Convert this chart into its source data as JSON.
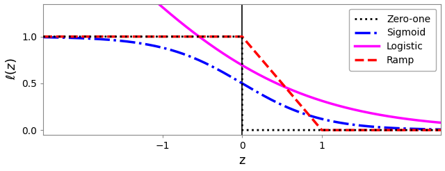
{
  "title": "",
  "xlabel": "z",
  "ylabel": "$\\ell(z)$",
  "xlim": [
    -2.5,
    2.5
  ],
  "ylim": [
    -0.05,
    1.35
  ],
  "yticks": [
    0.0,
    0.5,
    1.0
  ],
  "xticks": [
    -1,
    0,
    1
  ],
  "figsize": [
    6.4,
    2.46
  ],
  "dpi": 100,
  "background_color": "#ffffff",
  "zero_one_color": "black",
  "zero_one_style": "dotted",
  "zero_one_lw": 2.0,
  "sigmoid_color": "blue",
  "sigmoid_style": "dashdot",
  "sigmoid_lw": 2.5,
  "logistic_color": "magenta",
  "logistic_style": "solid",
  "logistic_lw": 2.5,
  "ramp_color": "red",
  "ramp_style": "dashed",
  "ramp_lw": 2.5,
  "vline_x": 0.0,
  "vline_color": "black",
  "vline_lw": 1.2,
  "legend_labels": [
    "Zero-one",
    "Sigmoid",
    "Logistic",
    "Ramp"
  ],
  "legend_loc": "upper right",
  "legend_fontsize": 10
}
